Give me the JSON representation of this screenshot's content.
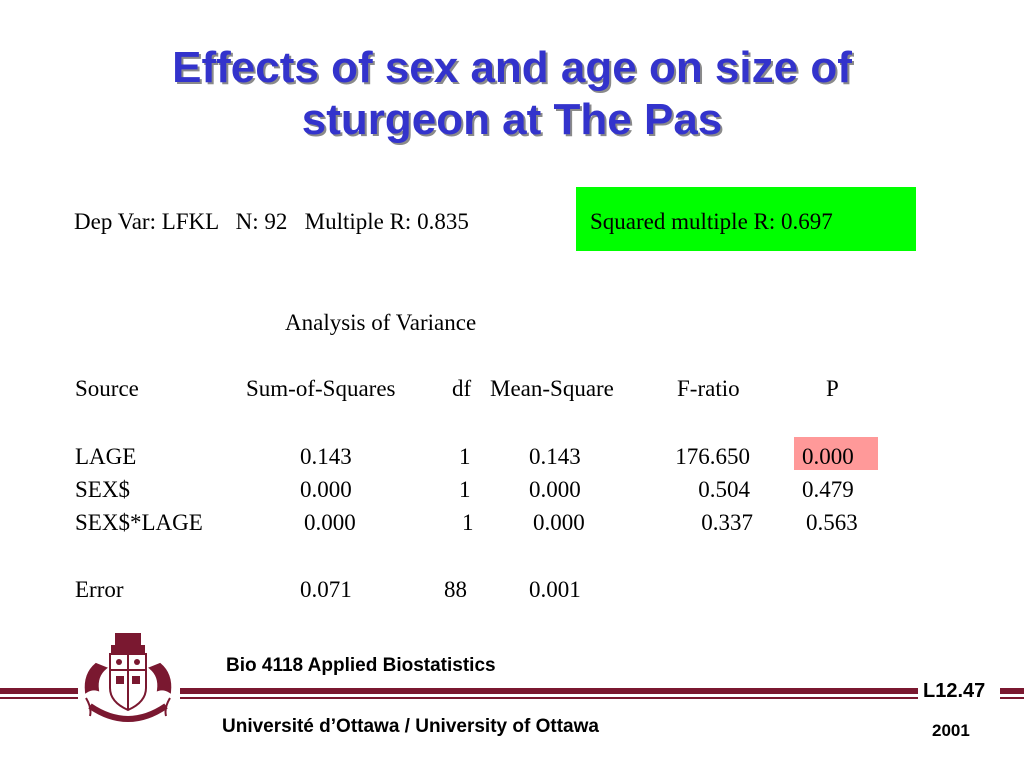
{
  "title": {
    "line1": "Effects of sex and age on size of",
    "line2": "sturgeon at The Pas"
  },
  "summary": {
    "dep_var": "Dep Var: LFKL",
    "n": "N: 92",
    "multiple_r": "Multiple R: 0.835",
    "squared_r": "Squared multiple R: 0.697"
  },
  "anova": {
    "title": "Analysis of Variance",
    "columns": [
      "Source",
      "Sum-of-Squares",
      "df",
      "Mean-Square",
      "F-ratio",
      "P"
    ],
    "rows": [
      {
        "source": "LAGE",
        "ss": "0.143",
        "df": "1",
        "ms": "0.143",
        "f": "176.650",
        "p": "0.000"
      },
      {
        "source": "SEX$",
        "ss": "0.000",
        "df": "1",
        "ms": "0.000",
        "f": "0.504",
        "p": "0.479"
      },
      {
        "source": "SEX$*LAGE",
        "ss": "0.000",
        "df": "1",
        "ms": "0.000",
        "f": "0.337",
        "p": "0.563"
      },
      {
        "source": "Error",
        "ss": "0.071",
        "df": "88",
        "ms": "0.001",
        "f": "",
        "p": ""
      }
    ]
  },
  "footer": {
    "course": "Bio 4118 Applied Biostatistics",
    "university": "Université d’Ottawa / University of Ottawa",
    "slide_code": "L12.47",
    "year": "2001"
  },
  "colors": {
    "title": "#3333cc",
    "highlight_green": "#00ff00",
    "highlight_pink": "#ff9999",
    "footer_bars": "#7a1830"
  },
  "icons": {
    "logo": "university-of-ottawa-crest-icon"
  }
}
